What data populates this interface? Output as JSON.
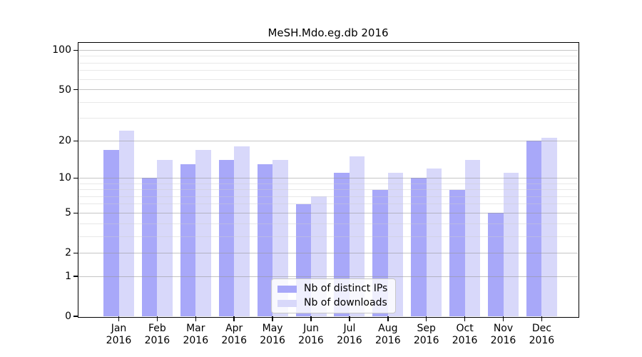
{
  "chart_data": {
    "type": "bar",
    "title": "MeSH.Mdo.eg.db 2016",
    "categories": [
      "Jan",
      "Feb",
      "Mar",
      "Apr",
      "May",
      "Jun",
      "Jul",
      "Aug",
      "Sep",
      "Oct",
      "Nov",
      "Dec"
    ],
    "year_label": "2016",
    "series": [
      {
        "name": "Nb of distinct IPs",
        "color": "#a8a8f9",
        "values": [
          17,
          10,
          13,
          14,
          13,
          6,
          11,
          8,
          10,
          8,
          5,
          20
        ]
      },
      {
        "name": "Nb of downloads",
        "color": "#d8d8fa",
        "values": [
          24,
          14,
          17,
          18,
          14,
          7,
          15,
          11,
          12,
          14,
          11,
          21
        ]
      }
    ],
    "xlabel": "",
    "ylabel": "",
    "yscale": "log10(1+x)",
    "ylim": [
      0,
      114
    ],
    "ytick_values": [
      0,
      1,
      2,
      5,
      10,
      20,
      50,
      100
    ],
    "ytick_labels": [
      "0",
      "1",
      "2",
      "5",
      "10",
      "20",
      "50",
      "100"
    ],
    "minor_gridline_values": [
      3,
      4,
      6,
      7,
      8,
      9,
      30,
      40,
      60,
      70,
      80,
      90
    ],
    "grid": "on",
    "legend_position": "lower-center",
    "colors": {
      "bar_distinct_ips": "#a8a8f9",
      "bar_downloads": "#d8d8fa",
      "major_grid": "#cdcdcd",
      "minor_grid": "#ececec",
      "axis_frame": "#000000",
      "background": "#ffffff"
    }
  }
}
